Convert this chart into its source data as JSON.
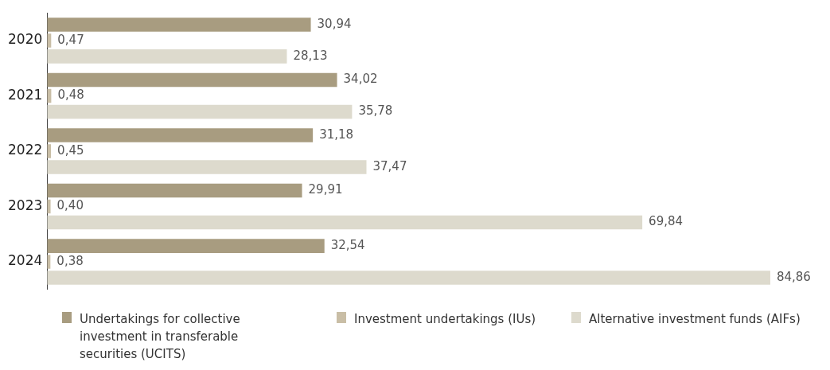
{
  "chart_data": {
    "type": "bar",
    "orientation": "horizontal",
    "categories": [
      "2020",
      "2021",
      "2022",
      "2023",
      "2024"
    ],
    "series": [
      {
        "name": "Undertakings for collective investment in transferable securities (UCITS)",
        "color": "#a89c80",
        "values": [
          30.94,
          34.02,
          31.18,
          29.91,
          32.54
        ],
        "value_labels": [
          "30,94",
          "34,02",
          "31,18",
          "29,91",
          "32,54"
        ]
      },
      {
        "name": "Investment undertakings (IUs)",
        "color": "#c9bea6",
        "values": [
          0.47,
          0.48,
          0.45,
          0.4,
          0.38
        ],
        "value_labels": [
          "0,47",
          "0,48",
          "0,45",
          "0,40",
          "0,38"
        ]
      },
      {
        "name": "Alternative investment funds (AIFs)",
        "color": "#dddacd",
        "values": [
          28.13,
          35.78,
          37.47,
          69.84,
          84.86
        ],
        "value_labels": [
          "28,13",
          "35,78",
          "37,47",
          "69,84",
          "84,86"
        ]
      }
    ],
    "tick_labels": "y",
    "grid": false,
    "legend": "bottom"
  }
}
